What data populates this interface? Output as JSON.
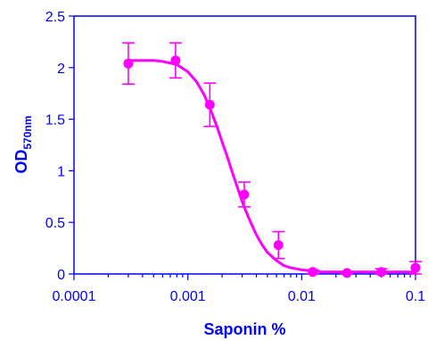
{
  "chart_data": {
    "type": "scatter",
    "xlabel": "Saponin %",
    "ylabel": "OD",
    "ylabel_subscript": "570nm",
    "x_scale": "log",
    "xlim": [
      0.0001,
      0.1
    ],
    "ylim": [
      0,
      2.5
    ],
    "x_ticks": [
      0.0001,
      0.001,
      0.01,
      0.1
    ],
    "x_tick_labels": [
      "0.0001",
      "0.001",
      "0.01",
      "0.1"
    ],
    "y_ticks": [
      0,
      0.5,
      1,
      1.5,
      2,
      2.5
    ],
    "y_tick_labels": [
      "0",
      "0.5",
      "1",
      "1.5",
      "2",
      "2.5"
    ],
    "grid": false,
    "legend": "none",
    "color": "#ff00ff",
    "axis_color": "#0000ff",
    "points": [
      {
        "x": 0.0003,
        "y": 2.04,
        "err": 0.2
      },
      {
        "x": 0.00078,
        "y": 2.07,
        "err": 0.17
      },
      {
        "x": 0.00156,
        "y": 1.64,
        "err": 0.21
      },
      {
        "x": 0.00313,
        "y": 0.77,
        "err": 0.12
      },
      {
        "x": 0.00625,
        "y": 0.28,
        "err": 0.13
      },
      {
        "x": 0.0125,
        "y": 0.02,
        "err": 0.02
      },
      {
        "x": 0.025,
        "y": 0.01,
        "err": 0.01
      },
      {
        "x": 0.05,
        "y": 0.02,
        "err": 0.03
      },
      {
        "x": 0.1,
        "y": 0.06,
        "err": 0.06
      }
    ],
    "fit_curve": {
      "x": [
        0.0003,
        0.0004,
        0.0005,
        0.0006,
        0.0008,
        0.001,
        0.0012,
        0.0014,
        0.0016,
        0.0018,
        0.002,
        0.0022,
        0.0025,
        0.0028,
        0.0031,
        0.0035,
        0.004,
        0.0045,
        0.005,
        0.006,
        0.007,
        0.008,
        0.01,
        0.012,
        0.015,
        0.02,
        0.03,
        0.05,
        0.1
      ],
      "y": [
        2.07,
        2.07,
        2.07,
        2.06,
        2.03,
        1.96,
        1.86,
        1.73,
        1.58,
        1.43,
        1.28,
        1.15,
        0.96,
        0.8,
        0.66,
        0.52,
        0.38,
        0.28,
        0.21,
        0.13,
        0.08,
        0.06,
        0.04,
        0.03,
        0.02,
        0.02,
        0.02,
        0.02,
        0.02
      ]
    }
  }
}
